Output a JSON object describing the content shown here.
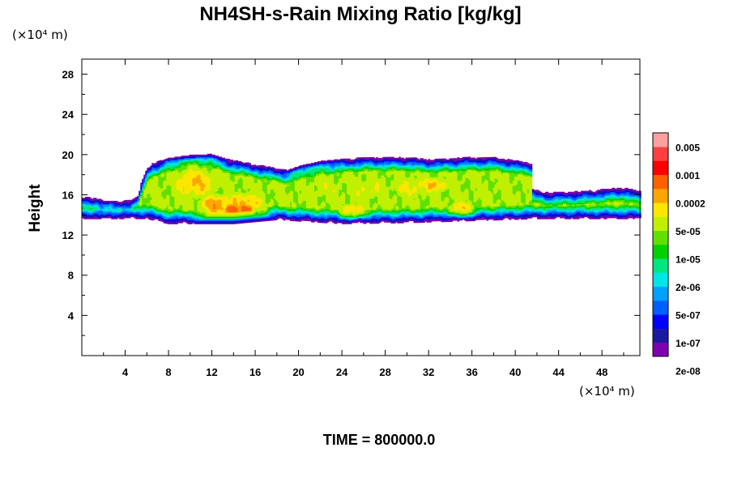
{
  "chart_data": {
    "type": "heatmap",
    "title": "NH4SH-s-Rain Mixing Ratio [kg/kg]",
    "ylabel": "Height",
    "x_unit": "(×10⁴ m)",
    "y_unit": "(×10⁴ m)",
    "xlim": [
      0,
      51.5
    ],
    "ylim": [
      0,
      29.5
    ],
    "x_ticks": [
      "4",
      "8",
      "12",
      "16",
      "20",
      "24",
      "28",
      "32",
      "36",
      "40",
      "44",
      "48"
    ],
    "y_ticks": [
      "4",
      "8",
      "12",
      "16",
      "20",
      "24",
      "28"
    ],
    "colorbar": {
      "labels": [
        "0.005",
        "0.001",
        "0.0002",
        "5e-05",
        "1e-05",
        "2e-06",
        "5e-07",
        "1e-07",
        "2e-08"
      ],
      "colors": [
        "#7f00b0",
        "#1a1aa0",
        "#0000ff",
        "#0060ff",
        "#00a0ff",
        "#00e6e6",
        "#00e680",
        "#00d000",
        "#60e000",
        "#c0f000",
        "#ffe600",
        "#ffa500",
        "#ff6000",
        "#ff0000",
        "#ff4040",
        "#ffa0a0"
      ]
    },
    "field": {
      "description_units": "log10 mixing ratio in kg/kg",
      "x_range": [
        0,
        51.5
      ],
      "base_bottom": [
        [
          0,
          13.6
        ],
        [
          6,
          13.6
        ],
        [
          8,
          13.1
        ],
        [
          14,
          13.1
        ],
        [
          18,
          13.5
        ],
        [
          24,
          13.1
        ],
        [
          30,
          13.2
        ],
        [
          36,
          13.4
        ],
        [
          42,
          13.6
        ],
        [
          51.5,
          13.6
        ]
      ],
      "top": [
        [
          0,
          15.8
        ],
        [
          1.5,
          15.8
        ],
        [
          2,
          15.4
        ],
        [
          4.5,
          15.5
        ],
        [
          5.2,
          16.0
        ],
        [
          5.4,
          17.0
        ],
        [
          6.0,
          18.6
        ],
        [
          6.5,
          19.2
        ],
        [
          8,
          19.7
        ],
        [
          10,
          20.0
        ],
        [
          12,
          20.1
        ],
        [
          13.5,
          19.6
        ],
        [
          15,
          19.3
        ],
        [
          16.5,
          19.0
        ],
        [
          18,
          18.7
        ],
        [
          19,
          18.5
        ],
        [
          20,
          18.9
        ],
        [
          22,
          19.4
        ],
        [
          24,
          19.6
        ],
        [
          26,
          19.8
        ],
        [
          28,
          19.8
        ],
        [
          30,
          19.8
        ],
        [
          32,
          19.6
        ],
        [
          34,
          19.7
        ],
        [
          36,
          19.8
        ],
        [
          38,
          19.8
        ],
        [
          40,
          19.5
        ],
        [
          41.5,
          19.2
        ],
        [
          41.6,
          16.6
        ],
        [
          43,
          16.3
        ],
        [
          46,
          16.4
        ],
        [
          50,
          16.8
        ],
        [
          51.5,
          16.4
        ]
      ],
      "cores": [
        {
          "x": 10.5,
          "z": 17.2,
          "sx": 2.2,
          "sz": 1.5,
          "v": -3.5
        },
        {
          "x": 12.5,
          "z": 15.0,
          "sx": 1.6,
          "sz": 1.0,
          "v": -3.2
        },
        {
          "x": 15.0,
          "z": 15.2,
          "sx": 1.8,
          "sz": 1.0,
          "v": -3.4
        },
        {
          "x": 13.8,
          "z": 14.5,
          "sx": 0.6,
          "sz": 0.5,
          "v": -2.4
        },
        {
          "x": 15.2,
          "z": 14.6,
          "sx": 0.6,
          "sz": 0.5,
          "v": -2.5
        },
        {
          "x": 22.5,
          "z": 16.6,
          "sx": 3.0,
          "sz": 1.6,
          "v": -4.2
        },
        {
          "x": 26.5,
          "z": 16.6,
          "sx": 2.5,
          "sz": 1.4,
          "v": -4.0
        },
        {
          "x": 30.5,
          "z": 16.8,
          "sx": 2.5,
          "sz": 1.3,
          "v": -3.9
        },
        {
          "x": 32.5,
          "z": 17.0,
          "sx": 1.5,
          "sz": 0.8,
          "v": -3.5
        },
        {
          "x": 25.0,
          "z": 14.6,
          "sx": 1.2,
          "sz": 0.6,
          "v": -3.6
        },
        {
          "x": 35.0,
          "z": 14.8,
          "sx": 1.2,
          "sz": 0.6,
          "v": -3.6
        },
        {
          "x": 36.5,
          "z": 17.8,
          "sx": 1.8,
          "sz": 0.9,
          "v": -4.8
        },
        {
          "x": 47.0,
          "z": 14.8,
          "sx": 2.5,
          "sz": 0.8,
          "v": -6.2
        },
        {
          "x": 2.0,
          "z": 14.6,
          "sx": 1.5,
          "sz": 0.7,
          "v": -6.0
        }
      ]
    }
  },
  "footer": {
    "time_label": "TIME = 800000.0"
  }
}
